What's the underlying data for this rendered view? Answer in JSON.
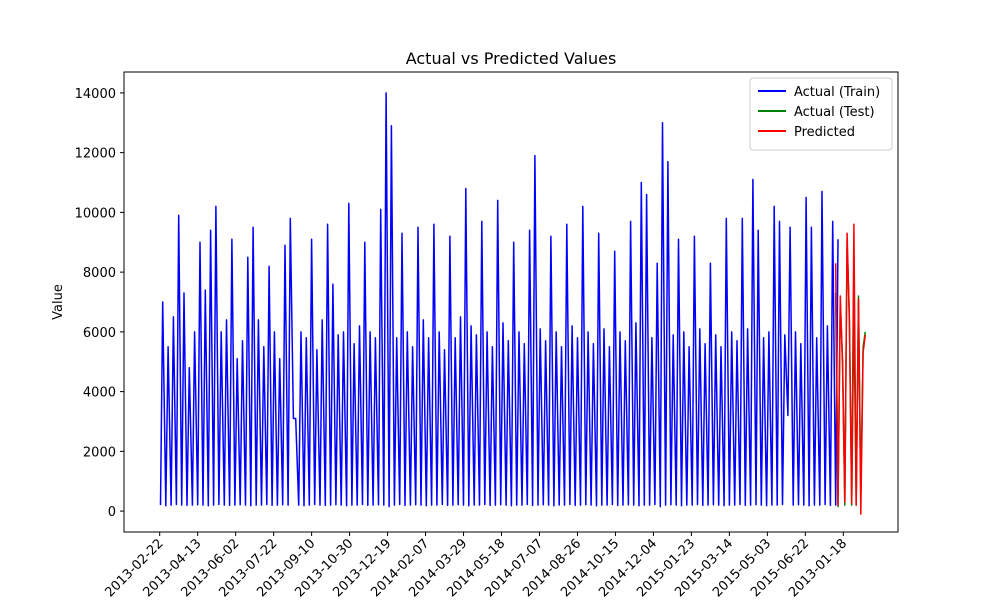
{
  "chart_data": {
    "type": "line",
    "title": "Actual vs Predicted Values",
    "ylabel": "Value",
    "xlim": [
      -47,
      972
    ],
    "ylim": [
      -700,
      14700
    ],
    "xticks": [
      {
        "value": 0,
        "label": "2013-02-22"
      },
      {
        "value": 50,
        "label": "2013-04-13"
      },
      {
        "value": 100,
        "label": "2013-06-02"
      },
      {
        "value": 150,
        "label": "2013-07-22"
      },
      {
        "value": 200,
        "label": "2013-09-10"
      },
      {
        "value": 250,
        "label": "2013-10-30"
      },
      {
        "value": 300,
        "label": "2013-12-19"
      },
      {
        "value": 350,
        "label": "2014-02-07"
      },
      {
        "value": 400,
        "label": "2014-03-29"
      },
      {
        "value": 450,
        "label": "2014-05-18"
      },
      {
        "value": 500,
        "label": "2014-07-07"
      },
      {
        "value": 550,
        "label": "2014-08-26"
      },
      {
        "value": 600,
        "label": "2014-10-15"
      },
      {
        "value": 650,
        "label": "2014-12-04"
      },
      {
        "value": 700,
        "label": "2015-01-23"
      },
      {
        "value": 750,
        "label": "2015-03-14"
      },
      {
        "value": 800,
        "label": "2015-05-03"
      },
      {
        "value": 850,
        "label": "2015-06-22"
      },
      {
        "value": 900,
        "label": "2013-01-18"
      }
    ],
    "yticks": [
      0,
      2000,
      4000,
      6000,
      8000,
      10000,
      12000,
      14000
    ],
    "legend": "upper right",
    "series": [
      {
        "name": "Actual (Train)",
        "color": "#0000ff",
        "x": [
          1,
          4,
          8,
          11,
          15,
          18,
          22,
          25,
          29,
          32,
          36,
          39,
          43,
          46,
          50,
          53,
          57,
          60,
          64,
          67,
          71,
          74,
          78,
          81,
          85,
          88,
          92,
          95,
          99,
          102,
          106,
          109,
          113,
          116,
          120,
          123,
          127,
          130,
          134,
          137,
          141,
          144,
          148,
          151,
          155,
          158,
          162,
          165,
          169,
          172,
          176,
          179,
          183,
          186,
          190,
          193,
          197,
          200,
          204,
          207,
          211,
          214,
          218,
          221,
          225,
          228,
          232,
          235,
          239,
          242,
          246,
          249,
          253,
          256,
          260,
          263,
          267,
          270,
          274,
          277,
          281,
          284,
          288,
          291,
          295,
          298,
          302,
          305,
          309,
          312,
          316,
          319,
          323,
          326,
          330,
          333,
          337,
          340,
          344,
          347,
          351,
          354,
          358,
          361,
          365,
          368,
          372,
          375,
          379,
          382,
          386,
          389,
          393,
          396,
          400,
          403,
          407,
          410,
          414,
          417,
          421,
          424,
          428,
          431,
          435,
          438,
          442,
          445,
          449,
          452,
          456,
          459,
          463,
          466,
          470,
          473,
          477,
          480,
          484,
          487,
          491,
          494,
          498,
          501,
          505,
          508,
          512,
          515,
          519,
          522,
          526,
          529,
          533,
          536,
          540,
          543,
          547,
          550,
          554,
          557,
          561,
          564,
          568,
          571,
          575,
          578,
          582,
          585,
          589,
          592,
          596,
          599,
          603,
          606,
          610,
          613,
          617,
          620,
          624,
          627,
          631,
          634,
          638,
          641,
          645,
          648,
          652,
          655,
          659,
          662,
          666,
          669,
          673,
          676,
          680,
          683,
          687,
          690,
          694,
          697,
          701,
          704,
          708,
          711,
          715,
          718,
          722,
          725,
          729,
          732,
          736,
          739,
          743,
          746,
          750,
          753,
          757,
          760,
          764,
          767,
          771,
          774,
          778,
          781,
          785,
          788,
          792,
          795,
          799,
          802,
          806,
          809,
          813,
          816,
          820,
          823,
          827,
          830,
          834,
          837,
          841,
          844,
          848,
          851,
          855,
          858,
          862,
          865,
          869,
          872,
          876,
          879,
          883,
          886,
          890,
          893
        ],
        "values": [
          200,
          7000,
          180,
          5500,
          200,
          6500,
          220,
          9900,
          200,
          7300,
          190,
          4800,
          200,
          6000,
          210,
          9000,
          200,
          7400,
          180,
          9400,
          200,
          10200,
          220,
          6000,
          200,
          6400,
          190,
          9100,
          200,
          5100,
          210,
          5700,
          200,
          8500,
          180,
          9500,
          200,
          6400,
          200,
          5500,
          220,
          8200,
          190,
          6000,
          200,
          5100,
          210,
          8900,
          200,
          9800,
          3100,
          3100,
          200,
          6000,
          180,
          5800,
          200,
          9100,
          220,
          5400,
          200,
          6400,
          190,
          9600,
          200,
          7600,
          210,
          5900,
          200,
          6000,
          180,
          10300,
          200,
          5600,
          200,
          6200,
          220,
          9000,
          190,
          6000,
          200,
          5800,
          210,
          10100,
          200,
          14000,
          150,
          12900,
          200,
          5800,
          220,
          9300,
          190,
          6000,
          200,
          5500,
          210,
          9500,
          200,
          6400,
          180,
          5800,
          200,
          9600,
          200,
          6000,
          220,
          5400,
          190,
          9200,
          200,
          5800,
          210,
          6500,
          200,
          10800,
          180,
          6200,
          200,
          5900,
          200,
          9700,
          220,
          6000,
          190,
          5500,
          200,
          10400,
          210,
          6300,
          200,
          5700,
          180,
          9000,
          200,
          6000,
          200,
          5600,
          220,
          9400,
          190,
          11900,
          200,
          6100,
          210,
          5700,
          200,
          9200,
          180,
          6000,
          200,
          5500,
          200,
          9600,
          220,
          6200,
          190,
          5800,
          200,
          10200,
          210,
          6000,
          200,
          5600,
          180,
          9300,
          200,
          6100,
          200,
          5500,
          220,
          8700,
          190,
          6000,
          200,
          5700,
          210,
          9700,
          200,
          6300,
          180,
          11000,
          200,
          10600,
          200,
          5800,
          220,
          8300,
          150,
          13000,
          200,
          11700,
          210,
          5900,
          200,
          9100,
          180,
          6000,
          200,
          5500,
          200,
          9200,
          220,
          6100,
          190,
          5600,
          200,
          8300,
          210,
          5900,
          200,
          5500,
          180,
          9800,
          200,
          6000,
          200,
          5700,
          220,
          9800,
          190,
          6100,
          200,
          11100,
          210,
          9400,
          200,
          5800,
          180,
          6000,
          200,
          10200,
          200,
          9700,
          220,
          5900,
          3200,
          9500,
          200,
          6000,
          210,
          5600,
          200,
          10500,
          180,
          9500,
          200,
          5800,
          200,
          10700,
          220,
          6200,
          190,
          9700,
          200,
          9100
        ]
      },
      {
        "name": "Actual (Test)",
        "color": "#008000",
        "x": [
          890,
          893,
          896,
          899,
          902,
          905,
          908,
          911,
          914,
          917,
          920,
          923,
          926,
          929
        ],
        "values": [
          7300,
          150,
          7000,
          5000,
          200,
          9000,
          6500,
          200,
          6800,
          200,
          7200,
          600,
          5500,
          6000
        ]
      },
      {
        "name": "Predicted",
        "color": "#ff0000",
        "x": [
          890,
          893,
          896,
          899,
          902,
          905,
          908,
          911,
          914,
          917,
          920,
          923,
          926,
          929
        ],
        "values": [
          8300,
          200,
          7200,
          4800,
          300,
          9300,
          6300,
          250,
          9600,
          200,
          7100,
          -100,
          5300,
          5900
        ]
      }
    ]
  }
}
